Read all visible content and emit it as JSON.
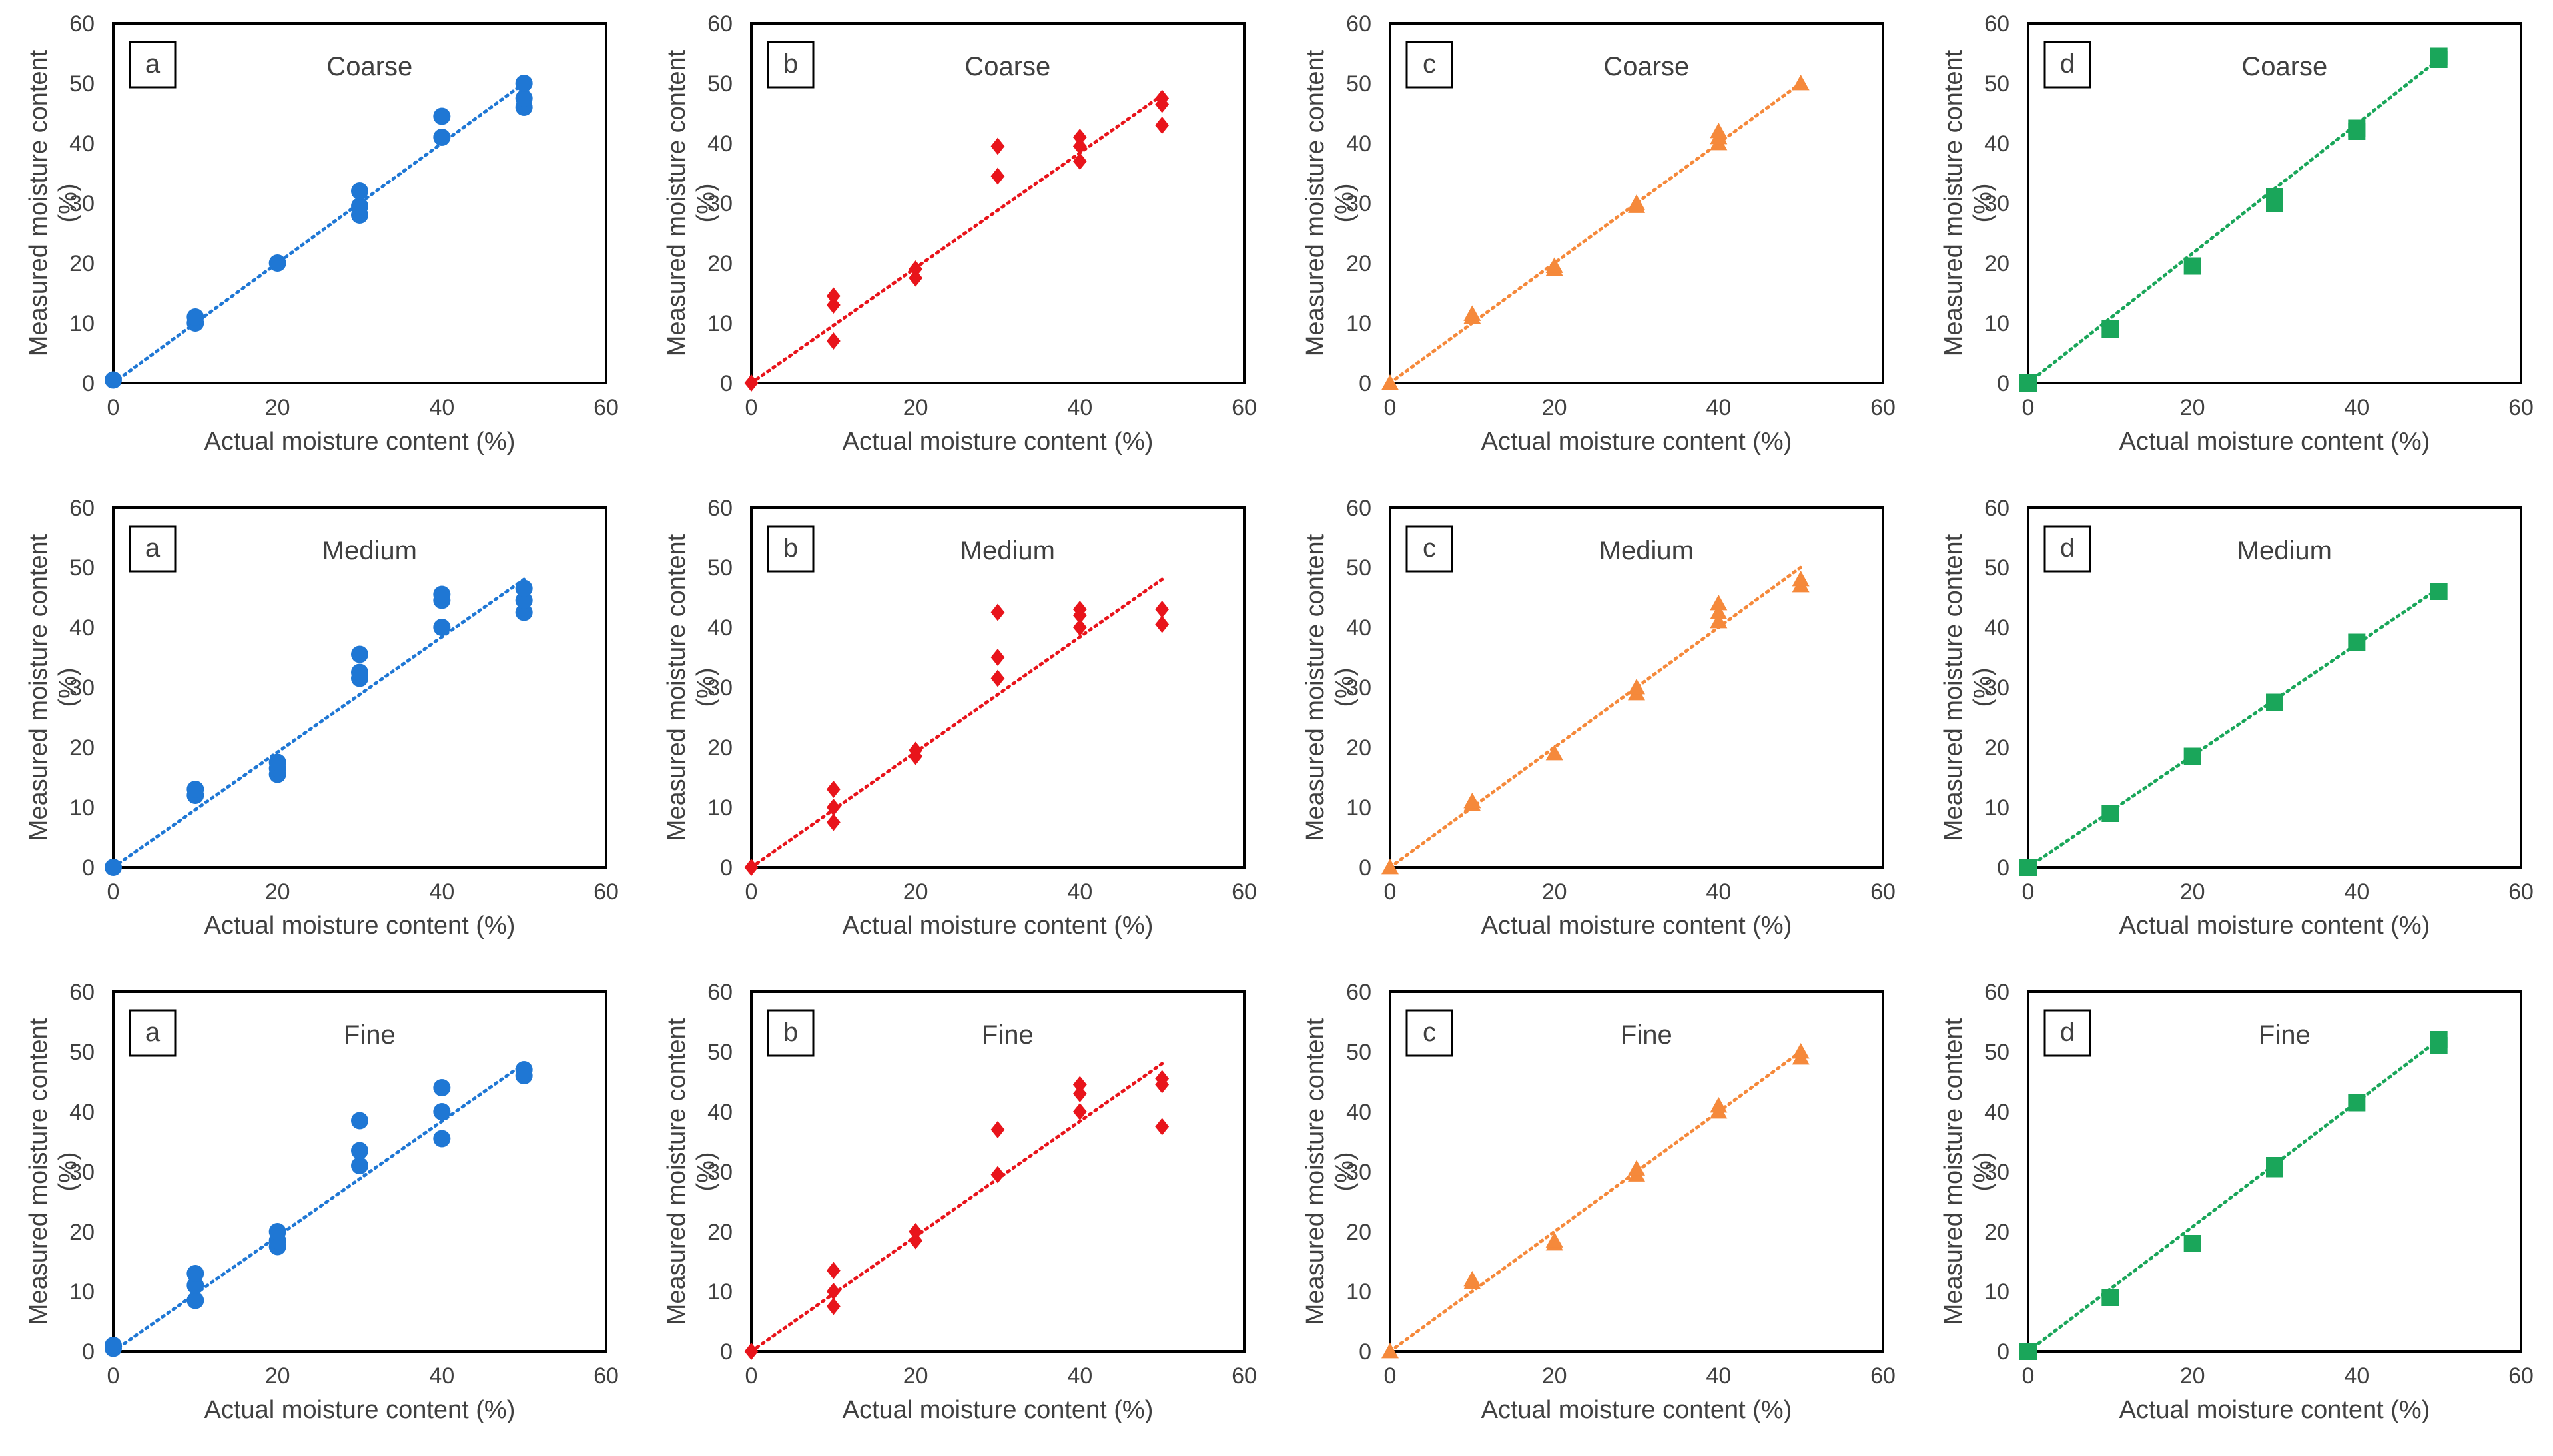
{
  "figure": {
    "colors": {
      "a": "#1f77d4",
      "b": "#e8141b",
      "c": "#f5893b",
      "d": "#1aa65a"
    },
    "markers": {
      "a": "circle",
      "b": "diamond",
      "c": "triangle",
      "d": "square"
    }
  },
  "chart_data": [
    {
      "type": "scatter",
      "panel_label": "a",
      "title": "Coarse",
      "series_color": "#1f77d4",
      "xlabel": "Actual moisture content (%)",
      "ylabel": "Measured moisture content (%)",
      "xlim": [
        0,
        60
      ],
      "ylim": [
        0,
        60
      ],
      "xticks": [
        0,
        20,
        40,
        60
      ],
      "yticks": [
        0,
        10,
        20,
        30,
        40,
        50,
        60
      ],
      "trendline": [
        [
          0,
          0
        ],
        [
          50,
          50
        ]
      ],
      "points": [
        [
          0,
          0.5
        ],
        [
          10,
          10
        ],
        [
          10,
          11
        ],
        [
          20,
          20
        ],
        [
          30,
          28
        ],
        [
          30,
          29.5
        ],
        [
          30,
          32
        ],
        [
          40,
          41
        ],
        [
          40,
          44.5
        ],
        [
          50,
          46
        ],
        [
          50,
          47.5
        ],
        [
          50,
          50
        ]
      ]
    },
    {
      "type": "scatter",
      "panel_label": "b",
      "title": "Coarse",
      "series_color": "#e8141b",
      "xlabel": "Actual moisture content (%)",
      "ylabel": "Measured moisture content (%)",
      "xlim": [
        0,
        60
      ],
      "ylim": [
        0,
        60
      ],
      "xticks": [
        0,
        20,
        40,
        60
      ],
      "yticks": [
        0,
        10,
        20,
        30,
        40,
        50,
        60
      ],
      "trendline": [
        [
          0,
          0
        ],
        [
          50,
          48
        ]
      ],
      "points": [
        [
          0,
          0
        ],
        [
          10,
          7
        ],
        [
          10,
          13
        ],
        [
          10,
          14.5
        ],
        [
          20,
          17.5
        ],
        [
          20,
          19
        ],
        [
          30,
          34.5
        ],
        [
          30,
          39.5
        ],
        [
          40,
          37
        ],
        [
          40,
          39.5
        ],
        [
          40,
          41
        ],
        [
          50,
          43
        ],
        [
          50,
          46.5
        ],
        [
          50,
          47.5
        ]
      ]
    },
    {
      "type": "scatter",
      "panel_label": "c",
      "title": "Coarse",
      "series_color": "#f5893b",
      "xlabel": "Actual moisture content (%)",
      "ylabel": "Measured moisture content (%)",
      "xlim": [
        0,
        60
      ],
      "ylim": [
        0,
        60
      ],
      "xticks": [
        0,
        20,
        40,
        60
      ],
      "yticks": [
        0,
        10,
        20,
        30,
        40,
        50,
        60
      ],
      "trendline": [
        [
          0,
          0
        ],
        [
          50,
          50
        ]
      ],
      "points": [
        [
          0,
          0
        ],
        [
          10,
          11
        ],
        [
          10,
          11.5
        ],
        [
          20,
          19
        ],
        [
          20,
          19.5
        ],
        [
          30,
          29.5
        ],
        [
          30,
          30
        ],
        [
          40,
          40
        ],
        [
          40,
          41
        ],
        [
          40,
          42
        ],
        [
          50,
          50
        ]
      ]
    },
    {
      "type": "scatter",
      "panel_label": "d",
      "title": "Coarse",
      "series_color": "#1aa65a",
      "xlabel": "Actual moisture content (%)",
      "ylabel": "Measured moisture content (%)",
      "xlim": [
        0,
        60
      ],
      "ylim": [
        0,
        60
      ],
      "xticks": [
        0,
        20,
        40,
        60
      ],
      "yticks": [
        0,
        10,
        20,
        30,
        40,
        50,
        60
      ],
      "trendline": [
        [
          0,
          0
        ],
        [
          50,
          54
        ]
      ],
      "points": [
        [
          0,
          0
        ],
        [
          10,
          9
        ],
        [
          20,
          19.5
        ],
        [
          30,
          30
        ],
        [
          30,
          31
        ],
        [
          40,
          42
        ],
        [
          40,
          42.5
        ],
        [
          50,
          54
        ],
        [
          50,
          54.5
        ]
      ]
    },
    {
      "type": "scatter",
      "panel_label": "a",
      "title": "Medium",
      "series_color": "#1f77d4",
      "xlabel": "Actual moisture content (%)",
      "ylabel": "Measured moisture content (%)",
      "xlim": [
        0,
        60
      ],
      "ylim": [
        0,
        60
      ],
      "xticks": [
        0,
        20,
        40,
        60
      ],
      "yticks": [
        0,
        10,
        20,
        30,
        40,
        50,
        60
      ],
      "trendline": [
        [
          0,
          0
        ],
        [
          50,
          48
        ]
      ],
      "points": [
        [
          0,
          0
        ],
        [
          10,
          12
        ],
        [
          10,
          13
        ],
        [
          20,
          15.5
        ],
        [
          20,
          16.5
        ],
        [
          20,
          17.5
        ],
        [
          30,
          31.5
        ],
        [
          30,
          32.5
        ],
        [
          30,
          35.5
        ],
        [
          40,
          40
        ],
        [
          40,
          44.5
        ],
        [
          40,
          45.5
        ],
        [
          50,
          42.5
        ],
        [
          50,
          44.5
        ],
        [
          50,
          46.5
        ]
      ]
    },
    {
      "type": "scatter",
      "panel_label": "b",
      "title": "Medium",
      "series_color": "#e8141b",
      "xlabel": "Actual moisture content (%)",
      "ylabel": "Measured moisture content (%)",
      "xlim": [
        0,
        60
      ],
      "ylim": [
        0,
        60
      ],
      "xticks": [
        0,
        20,
        40,
        60
      ],
      "yticks": [
        0,
        10,
        20,
        30,
        40,
        50,
        60
      ],
      "trendline": [
        [
          0,
          0
        ],
        [
          50,
          48
        ]
      ],
      "points": [
        [
          0,
          0
        ],
        [
          10,
          7.5
        ],
        [
          10,
          10
        ],
        [
          10,
          13
        ],
        [
          20,
          18.5
        ],
        [
          20,
          19.5
        ],
        [
          30,
          31.5
        ],
        [
          30,
          35
        ],
        [
          30,
          42.5
        ],
        [
          40,
          40
        ],
        [
          40,
          42
        ],
        [
          40,
          43
        ],
        [
          50,
          40.5
        ],
        [
          50,
          43
        ]
      ]
    },
    {
      "type": "scatter",
      "panel_label": "c",
      "title": "Medium",
      "series_color": "#f5893b",
      "xlabel": "Actual moisture content (%)",
      "ylabel": "Measured moisture content (%)",
      "xlim": [
        0,
        60
      ],
      "ylim": [
        0,
        60
      ],
      "xticks": [
        0,
        20,
        40,
        60
      ],
      "yticks": [
        0,
        10,
        20,
        30,
        40,
        50,
        60
      ],
      "trendline": [
        [
          0,
          0
        ],
        [
          50,
          50
        ]
      ],
      "points": [
        [
          0,
          0
        ],
        [
          10,
          10.5
        ],
        [
          10,
          11
        ],
        [
          20,
          19
        ],
        [
          30,
          29
        ],
        [
          30,
          30
        ],
        [
          40,
          41
        ],
        [
          40,
          42.5
        ],
        [
          40,
          44
        ],
        [
          50,
          47
        ],
        [
          50,
          48
        ]
      ]
    },
    {
      "type": "scatter",
      "panel_label": "d",
      "title": "Medium",
      "series_color": "#1aa65a",
      "xlabel": "Actual moisture content (%)",
      "ylabel": "Measured moisture content (%)",
      "xlim": [
        0,
        60
      ],
      "ylim": [
        0,
        60
      ],
      "xticks": [
        0,
        20,
        40,
        60
      ],
      "yticks": [
        0,
        10,
        20,
        30,
        40,
        50,
        60
      ],
      "trendline": [
        [
          0,
          0
        ],
        [
          50,
          46.5
        ]
      ],
      "points": [
        [
          0,
          0
        ],
        [
          10,
          9
        ],
        [
          20,
          18.5
        ],
        [
          30,
          27.5
        ],
        [
          40,
          37.5
        ],
        [
          50,
          46
        ]
      ]
    },
    {
      "type": "scatter",
      "panel_label": "a",
      "title": "Fine",
      "series_color": "#1f77d4",
      "xlabel": "Actual moisture content (%)",
      "ylabel": "Measured moisture content (%)",
      "xlim": [
        0,
        60
      ],
      "ylim": [
        0,
        60
      ],
      "xticks": [
        0,
        20,
        40,
        60
      ],
      "yticks": [
        0,
        10,
        20,
        30,
        40,
        50,
        60
      ],
      "trendline": [
        [
          0,
          0
        ],
        [
          50,
          48
        ]
      ],
      "points": [
        [
          0,
          0.5
        ],
        [
          0,
          1
        ],
        [
          10,
          8.5
        ],
        [
          10,
          11
        ],
        [
          10,
          13
        ],
        [
          20,
          17.5
        ],
        [
          20,
          18.5
        ],
        [
          20,
          20
        ],
        [
          30,
          31
        ],
        [
          30,
          33.5
        ],
        [
          30,
          38.5
        ],
        [
          40,
          35.5
        ],
        [
          40,
          40
        ],
        [
          40,
          44
        ],
        [
          50,
          46
        ],
        [
          50,
          47
        ]
      ]
    },
    {
      "type": "scatter",
      "panel_label": "b",
      "title": "Fine",
      "series_color": "#e8141b",
      "xlabel": "Actual moisture content (%)",
      "ylabel": "Measured moisture content (%)",
      "xlim": [
        0,
        60
      ],
      "ylim": [
        0,
        60
      ],
      "xticks": [
        0,
        20,
        40,
        60
      ],
      "yticks": [
        0,
        10,
        20,
        30,
        40,
        50,
        60
      ],
      "trendline": [
        [
          0,
          0
        ],
        [
          50,
          48
        ]
      ],
      "points": [
        [
          0,
          0
        ],
        [
          10,
          7.5
        ],
        [
          10,
          10
        ],
        [
          10,
          13.5
        ],
        [
          20,
          18.5
        ],
        [
          20,
          20
        ],
        [
          30,
          29.5
        ],
        [
          30,
          37
        ],
        [
          40,
          40
        ],
        [
          40,
          43
        ],
        [
          40,
          44.5
        ],
        [
          50,
          37.5
        ],
        [
          50,
          44.5
        ],
        [
          50,
          45.5
        ]
      ]
    },
    {
      "type": "scatter",
      "panel_label": "c",
      "title": "Fine",
      "series_color": "#f5893b",
      "xlabel": "Actual moisture content (%)",
      "ylabel": "Measured moisture content (%)",
      "xlim": [
        0,
        60
      ],
      "ylim": [
        0,
        60
      ],
      "xticks": [
        0,
        20,
        40,
        60
      ],
      "yticks": [
        0,
        10,
        20,
        30,
        40,
        50,
        60
      ],
      "trendline": [
        [
          0,
          0
        ],
        [
          50,
          50
        ]
      ],
      "points": [
        [
          0,
          0
        ],
        [
          10,
          11.5
        ],
        [
          10,
          12
        ],
        [
          20,
          18
        ],
        [
          20,
          18.5
        ],
        [
          30,
          29.5
        ],
        [
          30,
          30.5
        ],
        [
          40,
          40
        ],
        [
          40,
          41
        ],
        [
          50,
          49
        ],
        [
          50,
          50
        ]
      ]
    },
    {
      "type": "scatter",
      "panel_label": "d",
      "title": "Fine",
      "series_color": "#1aa65a",
      "xlabel": "Actual moisture content (%)",
      "ylabel": "Measured moisture content (%)",
      "xlim": [
        0,
        60
      ],
      "ylim": [
        0,
        60
      ],
      "xticks": [
        0,
        20,
        40,
        60
      ],
      "yticks": [
        0,
        10,
        20,
        30,
        40,
        50,
        60
      ],
      "trendline": [
        [
          0,
          0
        ],
        [
          50,
          52
        ]
      ],
      "points": [
        [
          0,
          0
        ],
        [
          10,
          9
        ],
        [
          20,
          18
        ],
        [
          30,
          30.5
        ],
        [
          30,
          31
        ],
        [
          40,
          41.5
        ],
        [
          50,
          51
        ],
        [
          50,
          52
        ]
      ]
    }
  ]
}
